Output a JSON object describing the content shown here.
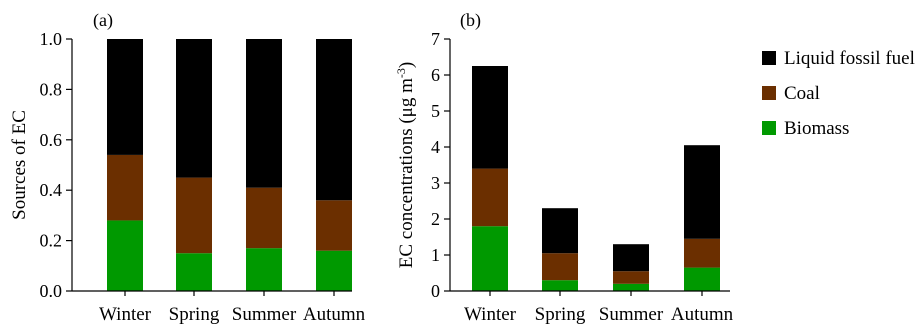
{
  "colors": {
    "biomass": "#009900",
    "coal": "#6b2f00",
    "liquid_fossil_fuel": "#000000"
  },
  "legend": [
    {
      "key": "liquid_fossil_fuel",
      "label": "Liquid fossil fuel"
    },
    {
      "key": "coal",
      "label": "Coal"
    },
    {
      "key": "biomass",
      "label": "Biomass"
    }
  ],
  "chart_data": [
    {
      "type": "bar",
      "stacked": true,
      "panel_label": "(a)",
      "ylabel": "Sources of EC",
      "categories": [
        "Winter",
        "Spring",
        "Summer",
        "Autumn"
      ],
      "ylim": [
        0,
        1.0
      ],
      "yticks": [
        "0.0",
        "0.2",
        "0.4",
        "0.6",
        "0.8",
        "1.0"
      ],
      "series": [
        {
          "name": "Biomass",
          "key": "biomass",
          "values": [
            0.28,
            0.15,
            0.17,
            0.16
          ]
        },
        {
          "name": "Coal",
          "key": "coal",
          "values": [
            0.26,
            0.3,
            0.24,
            0.2
          ]
        },
        {
          "name": "Liquid fossil fuel",
          "key": "liquid_fossil_fuel",
          "values": [
            0.46,
            0.55,
            0.59,
            0.64
          ]
        }
      ],
      "grid": false
    },
    {
      "type": "bar",
      "stacked": true,
      "panel_label": "(b)",
      "ylabel": "EC concentrations (μg m",
      "ylabel_sup": "-3",
      "ylabel_end": ")",
      "categories": [
        "Winter",
        "Spring",
        "Summer",
        "Autumn"
      ],
      "ylim": [
        0,
        7
      ],
      "yticks": [
        "0",
        "1",
        "2",
        "3",
        "4",
        "5",
        "6",
        "7"
      ],
      "series": [
        {
          "name": "Biomass",
          "key": "biomass",
          "values": [
            1.8,
            0.3,
            0.2,
            0.65
          ]
        },
        {
          "name": "Coal",
          "key": "coal",
          "values": [
            1.6,
            0.75,
            0.35,
            0.8
          ]
        },
        {
          "name": "Liquid fossil fuel",
          "key": "liquid_fossil_fuel",
          "values": [
            2.85,
            1.25,
            0.75,
            2.6
          ]
        }
      ],
      "grid": false,
      "legend_position": "right"
    }
  ]
}
